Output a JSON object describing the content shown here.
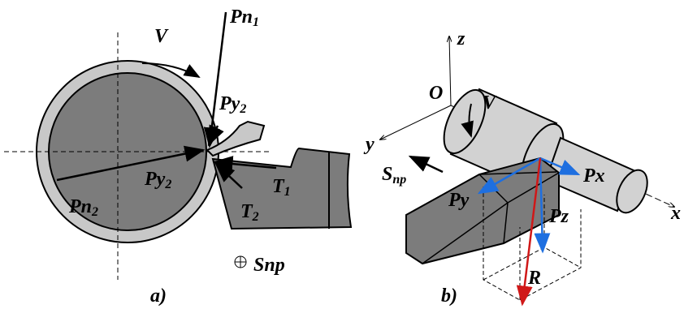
{
  "left": {
    "labels": [
      {
        "text": "V"
      },
      {
        "text": "Pn",
        "sub": "1"
      },
      {
        "text": "Py",
        "sub": "2"
      },
      {
        "text": "Pn",
        "sub": "2"
      },
      {
        "text": "Py",
        "sub": "2"
      },
      {
        "text": "T",
        "sub": "1"
      },
      {
        "text": "T",
        "sub": "2"
      },
      {
        "text": "Snp"
      }
    ],
    "caption": "a)"
  },
  "right": {
    "labels": [
      {
        "text": "z"
      },
      {
        "text": "O"
      },
      {
        "text": "V"
      },
      {
        "text": "y"
      },
      {
        "text": "S",
        "sub": "np"
      },
      {
        "text": "Py"
      },
      {
        "text": "Px"
      },
      {
        "text": "Pz"
      },
      {
        "text": "R"
      },
      {
        "text": "x"
      }
    ],
    "caption": "b)"
  }
}
